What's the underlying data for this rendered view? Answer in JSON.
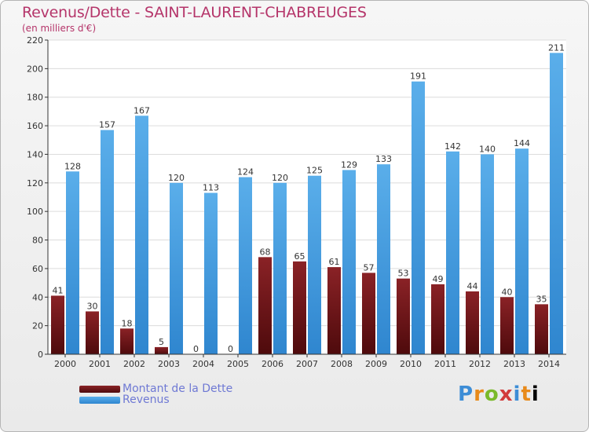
{
  "header": {
    "title": "Revenus/Dette - SAINT-LAURENT-CHABREUGES",
    "subtitle": "(en milliers d'€)"
  },
  "logo": {
    "letters": [
      "P",
      "r",
      "o",
      "x",
      "i",
      "t",
      "i"
    ],
    "text": "Proxiti"
  },
  "colors": {
    "title": "#b5356a",
    "debt": "#6e1416",
    "revenue": "#3f9ee6",
    "legend_text": "#6f79d4"
  },
  "chart_data": {
    "type": "bar",
    "title": "Revenus/Dette - SAINT-LAURENT-CHABREUGES",
    "ylabel": "(en milliers d'€)",
    "xlabel": "",
    "ylim": [
      0,
      220
    ],
    "yticks": [
      0,
      20,
      40,
      60,
      80,
      100,
      120,
      140,
      160,
      180,
      200,
      220
    ],
    "grid": true,
    "legend_position": "bottom-left",
    "categories": [
      "2000",
      "2001",
      "2002",
      "2003",
      "2004",
      "2005",
      "2006",
      "2007",
      "2008",
      "2009",
      "2010",
      "2011",
      "2012",
      "2013",
      "2014"
    ],
    "series": [
      {
        "name": "Montant de la Dette",
        "color": "#6e1416",
        "values": [
          41,
          30,
          18,
          5,
          0,
          0,
          68,
          65,
          61,
          57,
          53,
          49,
          44,
          40,
          35
        ]
      },
      {
        "name": "Revenus",
        "color": "#3f9ee6",
        "values": [
          128,
          157,
          167,
          120,
          113,
          124,
          120,
          125,
          129,
          133,
          191,
          142,
          140,
          144,
          211
        ]
      }
    ]
  }
}
